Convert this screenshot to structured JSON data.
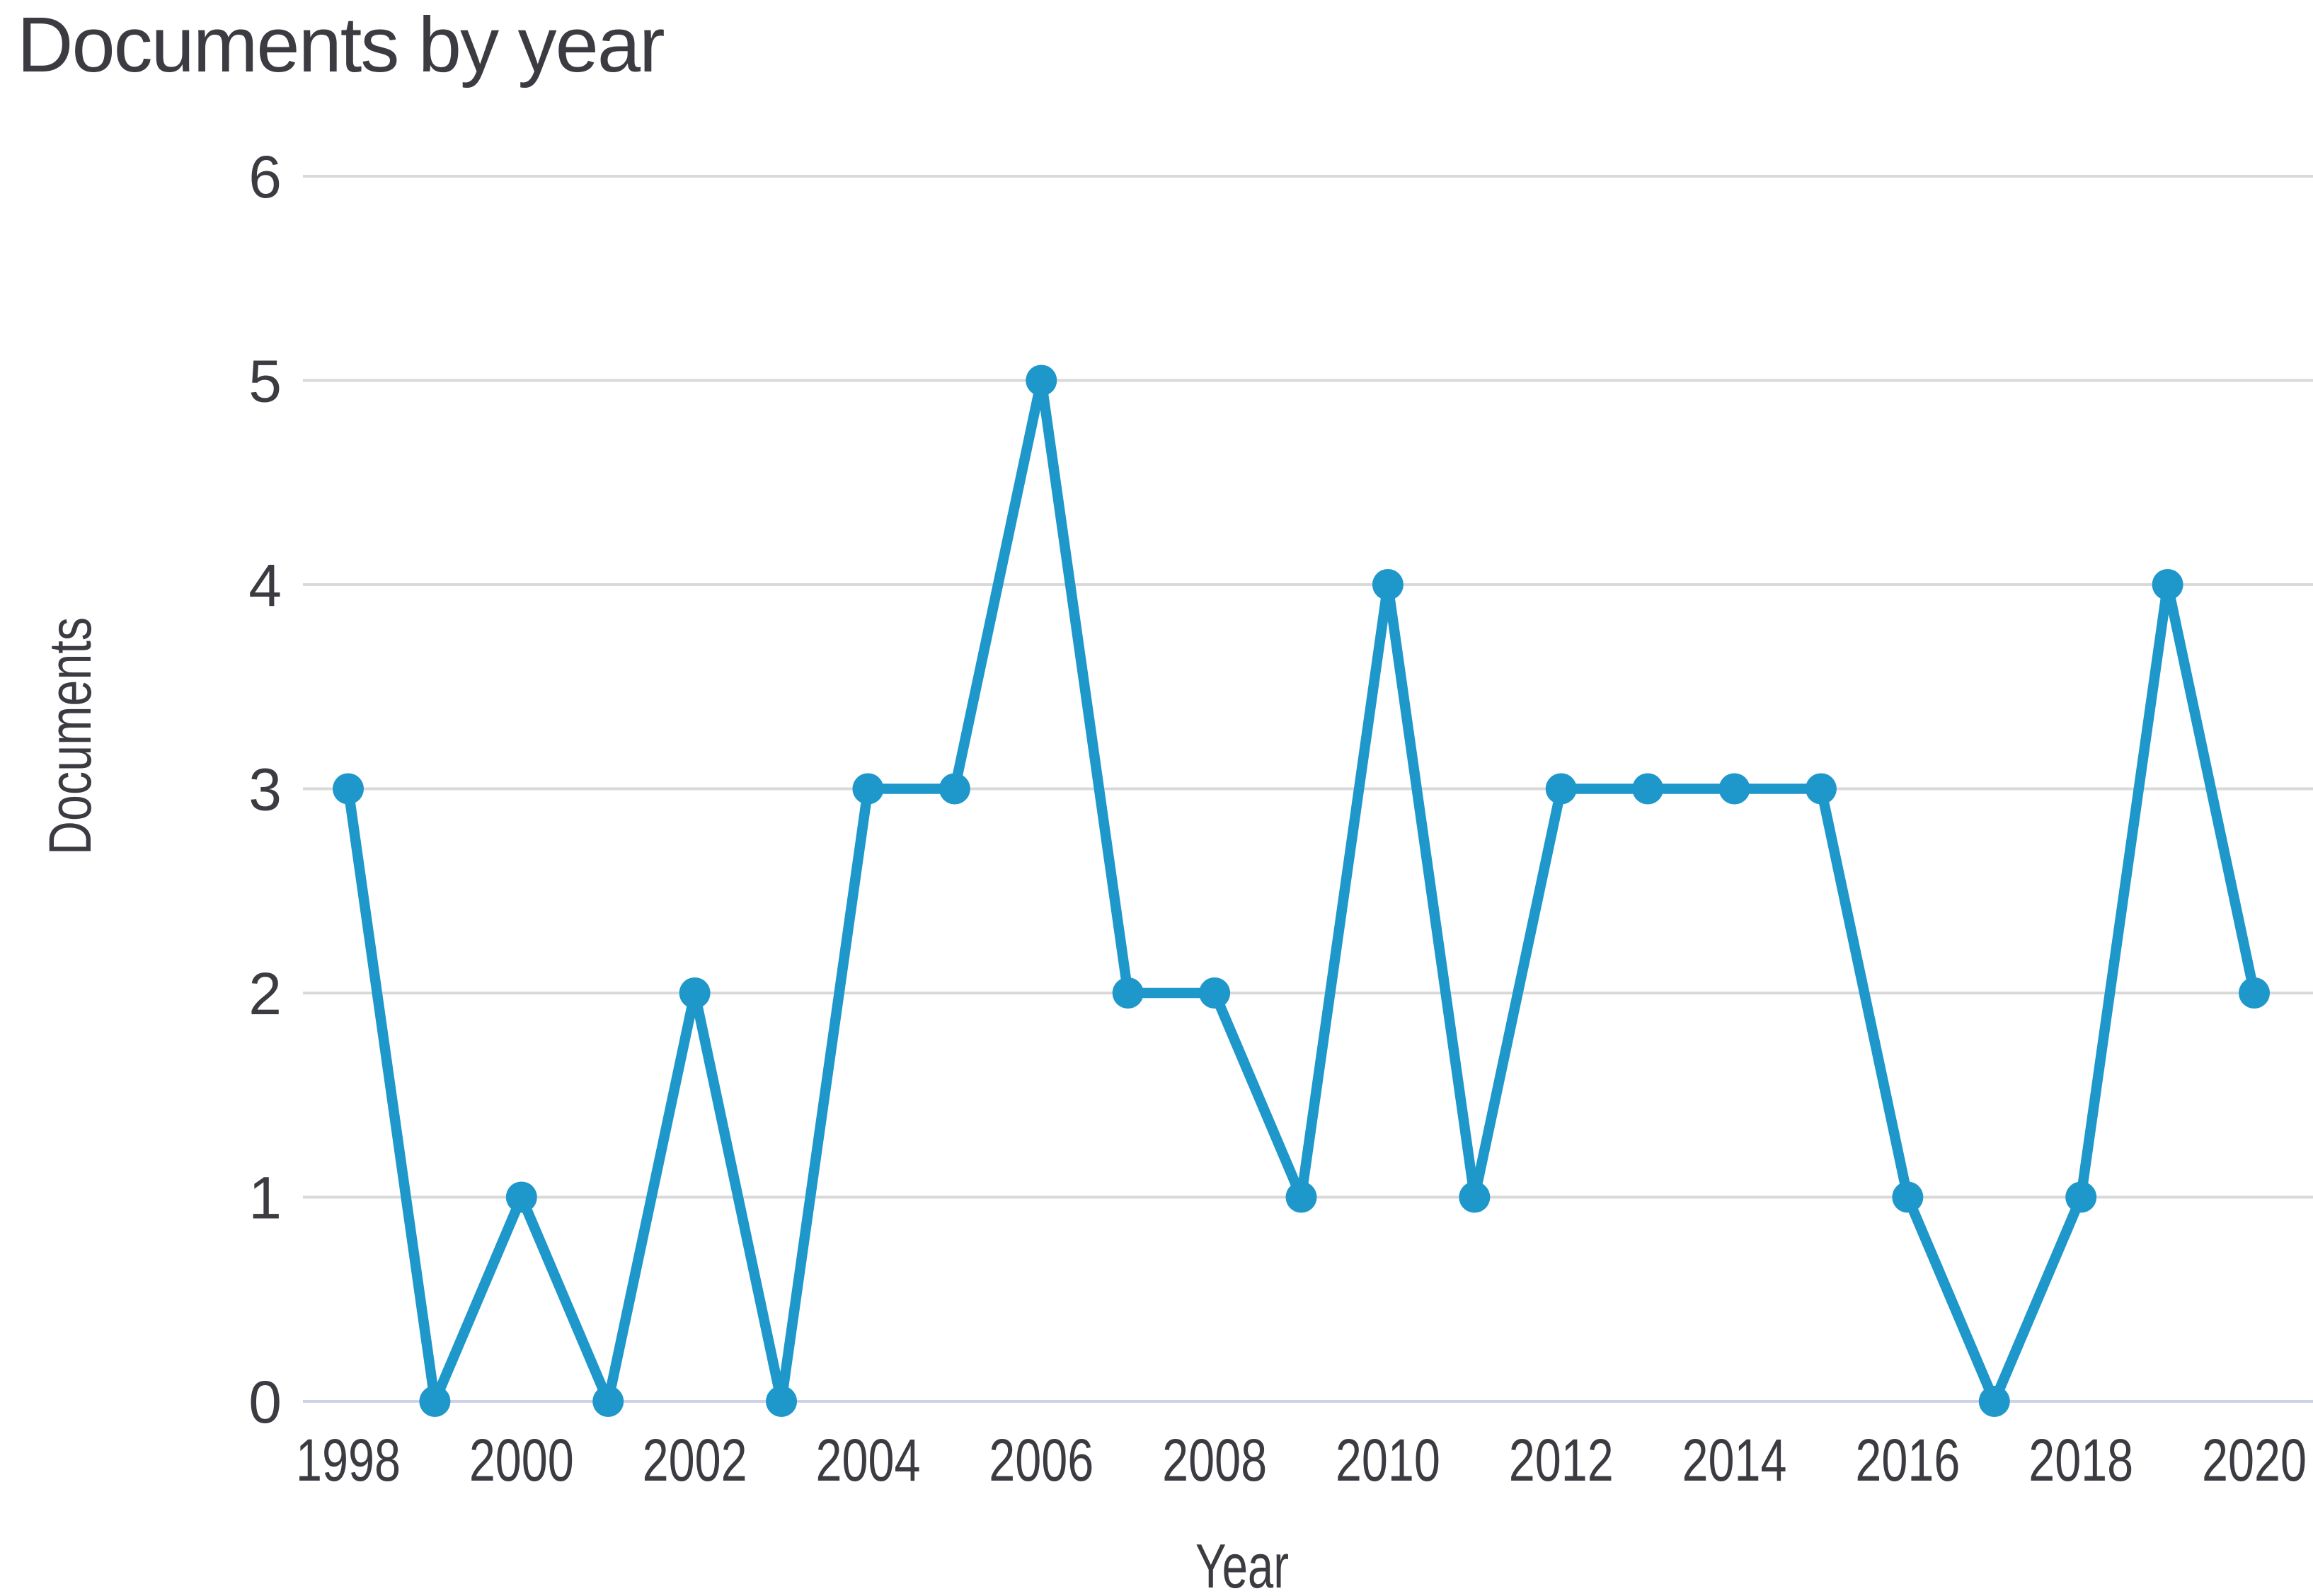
{
  "header": {
    "title": "Documents by year"
  },
  "chart_data": {
    "type": "line",
    "title": "Documents by year",
    "xlabel": "Year",
    "ylabel": "Documents",
    "x": [
      1998,
      1999,
      2000,
      2001,
      2002,
      2003,
      2004,
      2005,
      2006,
      2007,
      2008,
      2009,
      2010,
      2011,
      2012,
      2013,
      2014,
      2015,
      2016,
      2017,
      2018,
      2019,
      2020
    ],
    "values": [
      3,
      0,
      1,
      0,
      2,
      0,
      3,
      3,
      5,
      2,
      2,
      1,
      4,
      1,
      3,
      3,
      3,
      3,
      1,
      0,
      1,
      4,
      2
    ],
    "ylim": [
      0,
      6
    ],
    "yticks": [
      0,
      1,
      2,
      3,
      4,
      5,
      6
    ],
    "xticks": [
      1998,
      2000,
      2002,
      2004,
      2006,
      2008,
      2010,
      2012,
      2014,
      2016,
      2018,
      2020
    ],
    "grid": "horizontal",
    "legend": "none",
    "marker": "circle",
    "line_color": "#1e97cb",
    "gridline_color": "#d9d9d9",
    "baseline_color": "#ccd3e8",
    "text_color": "#3b3b41"
  }
}
